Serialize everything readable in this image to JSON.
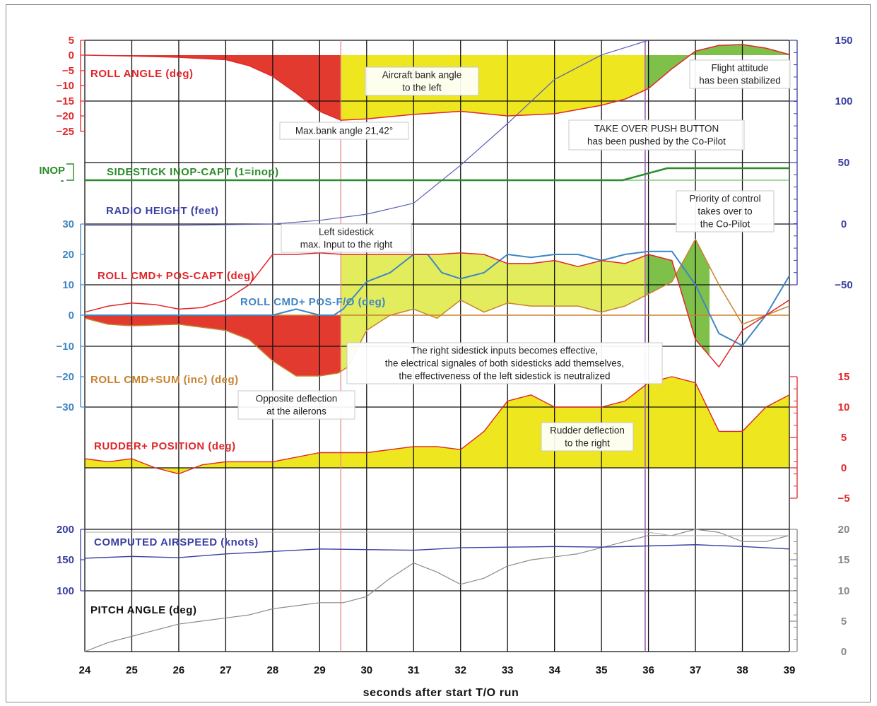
{
  "chart_data": {
    "type": "line",
    "xlabel": "seconds after start T/O run",
    "x_ticks": [
      24,
      25,
      26,
      27,
      28,
      29,
      30,
      31,
      32,
      33,
      34,
      35,
      36,
      37,
      38,
      39
    ],
    "markers": {
      "pink_line_x": 29.45,
      "purple_line_x": 35.93
    },
    "colors": {
      "red": "#e0262b",
      "blue": "#3a3fa3",
      "steel": "#3f86c4",
      "green": "#2a8c2a",
      "orange": "#c8822e",
      "yellow": "#eee61e",
      "light_yellow": "#e3ec5c",
      "fill_red": "#e23a2f",
      "fill_green": "#7fc04b",
      "gray": "#999999",
      "black": "#111111"
    },
    "axes": {
      "roll_angle_ticks": [
        "5",
        "0",
        "−5",
        "−10",
        "−15",
        "−20",
        "−25"
      ],
      "inop_ticks": [
        "INOP",
        "-"
      ],
      "radio_height_ticks": [
        "150",
        "100",
        "50",
        "0",
        "−50"
      ],
      "roll_cmd_ticks": [
        "30",
        "20",
        "10",
        "0",
        "−10",
        "−20",
        "−30"
      ],
      "rudder_ticks": [
        "15",
        "10",
        "5",
        "0",
        "−5"
      ],
      "airspeed_ticks": [
        "200",
        "150",
        "100"
      ],
      "pitch_ticks": [
        "20",
        "15",
        "10",
        "5",
        "0"
      ]
    },
    "series": [
      {
        "name": "ROLL ANGLE (deg)",
        "unit": "deg",
        "x": [
          24,
          25,
          26,
          27,
          27.5,
          28,
          28.5,
          29,
          29.45,
          30,
          31,
          32,
          33,
          34,
          35,
          35.5,
          36,
          36.5,
          37,
          37.5,
          38,
          38.5,
          39
        ],
        "values": [
          0,
          -0.3,
          -0.7,
          -1.5,
          -3.5,
          -7,
          -12.5,
          -18.5,
          -21.42,
          -21,
          -19.5,
          -18.5,
          -20,
          -19.3,
          -16.5,
          -14.5,
          -11,
          -4.5,
          1.3,
          3.2,
          3.5,
          2.3,
          0.2
        ]
      },
      {
        "name": "SIDESTICK INOP-CAPT (1=inop)",
        "x": [
          24,
          35.45,
          36.4,
          39
        ],
        "values": [
          0,
          0,
          1,
          1
        ]
      },
      {
        "name": "RADIO HEIGHT (feet)",
        "unit": "feet",
        "x": [
          24,
          26,
          28,
          29,
          30,
          31,
          32,
          33,
          34,
          35,
          36
        ],
        "values": [
          -1,
          -1,
          0,
          3,
          8,
          17,
          48,
          82,
          118,
          138,
          150
        ]
      },
      {
        "name": "ROLL CMD+ POS-CAPT (deg)",
        "unit": "deg",
        "x": [
          24,
          24.5,
          25,
          25.5,
          26,
          26.5,
          27,
          27.5,
          28,
          28.5,
          29,
          29.5,
          30,
          30.5,
          31,
          31.5,
          32,
          32.5,
          33,
          33.5,
          34,
          34.5,
          35,
          35.5,
          36,
          36.5,
          37,
          37.5,
          38,
          38.5,
          39
        ],
        "values": [
          1,
          3,
          4,
          3.5,
          2,
          2.5,
          5,
          10,
          20,
          20,
          20.5,
          20,
          20,
          20,
          20,
          20,
          20.5,
          20,
          17,
          17,
          18,
          16,
          18,
          17,
          20,
          18,
          -8,
          -17,
          -5,
          0,
          5
        ]
      },
      {
        "name": "ROLL CMD+ POS-F/O (deg)",
        "unit": "deg",
        "x": [
          24,
          28,
          28.5,
          29,
          29.3,
          29.5,
          30,
          30.5,
          31,
          31.3,
          31.6,
          32,
          32.5,
          33,
          33.5,
          34,
          34.5,
          35,
          35.5,
          36,
          36.5,
          37,
          37.5,
          38,
          38.5,
          39
        ],
        "values": [
          0,
          0,
          2,
          0,
          0,
          2,
          11,
          14,
          20,
          20,
          14,
          12,
          14,
          20,
          19,
          20,
          20,
          18,
          20,
          21,
          21,
          10,
          -6,
          -10,
          0,
          13
        ]
      },
      {
        "name": "ROLL CMD+SUM (inc) (deg)",
        "unit": "deg",
        "x": [
          24,
          24.5,
          25,
          26,
          27,
          27.5,
          28,
          28.5,
          29,
          29.4,
          29.6,
          30,
          30.5,
          31,
          31.5,
          32,
          32.5,
          33,
          33.5,
          34,
          34.5,
          35,
          35.5,
          36,
          36.5,
          37,
          37.5,
          38,
          38.5,
          39
        ],
        "values": [
          -1,
          -3,
          -3.5,
          -3,
          -5,
          -8,
          -15,
          -20,
          -20,
          -19,
          -17,
          -5,
          0,
          2,
          -1,
          5,
          1,
          4,
          3,
          3,
          3,
          1,
          3,
          7,
          11,
          25,
          10,
          -3,
          0,
          3
        ]
      },
      {
        "name": "RUDDER+ POSITION (deg)",
        "unit": "deg",
        "x": [
          24,
          24.5,
          25,
          25.5,
          26,
          26.5,
          27,
          28,
          29,
          30,
          31,
          31.5,
          32,
          32.5,
          33,
          33.5,
          34,
          35,
          35.5,
          36,
          36.5,
          37,
          37.5,
          38,
          38.5,
          39
        ],
        "values": [
          1.5,
          1,
          1.5,
          0,
          -1,
          0.5,
          1,
          1,
          2.5,
          2.5,
          3.5,
          3.5,
          3,
          6,
          11,
          12,
          10,
          10,
          11,
          14,
          15,
          14,
          6,
          6,
          10,
          12
        ]
      },
      {
        "name": "COMPUTED AIRSPEED (knots)",
        "unit": "knots",
        "x": [
          24,
          25,
          26,
          27,
          28,
          29,
          30,
          31,
          32,
          33,
          34,
          35,
          36,
          37,
          38,
          39
        ],
        "values": [
          153,
          156,
          154,
          160,
          164,
          168,
          167,
          166,
          170,
          171,
          172,
          171,
          173,
          175,
          172,
          168
        ]
      },
      {
        "name": "PITCH ANGLE (deg)",
        "unit": "deg",
        "x": [
          24,
          24.5,
          25,
          25.5,
          26,
          26.5,
          27,
          27.5,
          28,
          28.5,
          29,
          29.5,
          30,
          30.5,
          31,
          31.5,
          32,
          32.5,
          33,
          33.5,
          34,
          34.5,
          35,
          35.5,
          36,
          36.5,
          37,
          37.5,
          38,
          38.5,
          39
        ],
        "values": [
          0,
          1.5,
          2.5,
          3.5,
          4.5,
          5,
          5.5,
          6,
          7,
          7.5,
          8,
          8,
          9,
          12,
          14.5,
          13,
          11,
          12,
          14,
          15,
          15.5,
          16,
          17,
          18,
          19,
          19,
          20,
          19.5,
          18,
          18,
          19
        ]
      }
    ],
    "annotations": [
      {
        "id": "bank",
        "lines": [
          "Aircraft bank angle",
          "to the left"
        ]
      },
      {
        "id": "stabilized",
        "lines": [
          "Flight attitude",
          "has been stabilized"
        ]
      },
      {
        "id": "maxbank",
        "lines": [
          "Max.bank angle 21,42°"
        ]
      },
      {
        "id": "takeover",
        "lines": [
          "TAKE OVER PUSH BUTTON",
          "has been pushed by the Co-Pilot"
        ]
      },
      {
        "id": "priority",
        "lines": [
          "Priority of control",
          "takes over to",
          "the Co-Pilot"
        ]
      },
      {
        "id": "leftstick",
        "lines": [
          "Left sidestick",
          "max. Input to the right"
        ]
      },
      {
        "id": "rightstick",
        "lines": [
          "The right sidestick inputs becomes effective,",
          "the electrical signales of both sidesticks add themselves,",
          "the effectiveness of the left sidestick is neutralized"
        ]
      },
      {
        "id": "opposite",
        "lines": [
          "Opposite deflection",
          "at the ailerons"
        ]
      },
      {
        "id": "rudder",
        "lines": [
          "Rudder deflection",
          "to the right"
        ]
      }
    ]
  }
}
